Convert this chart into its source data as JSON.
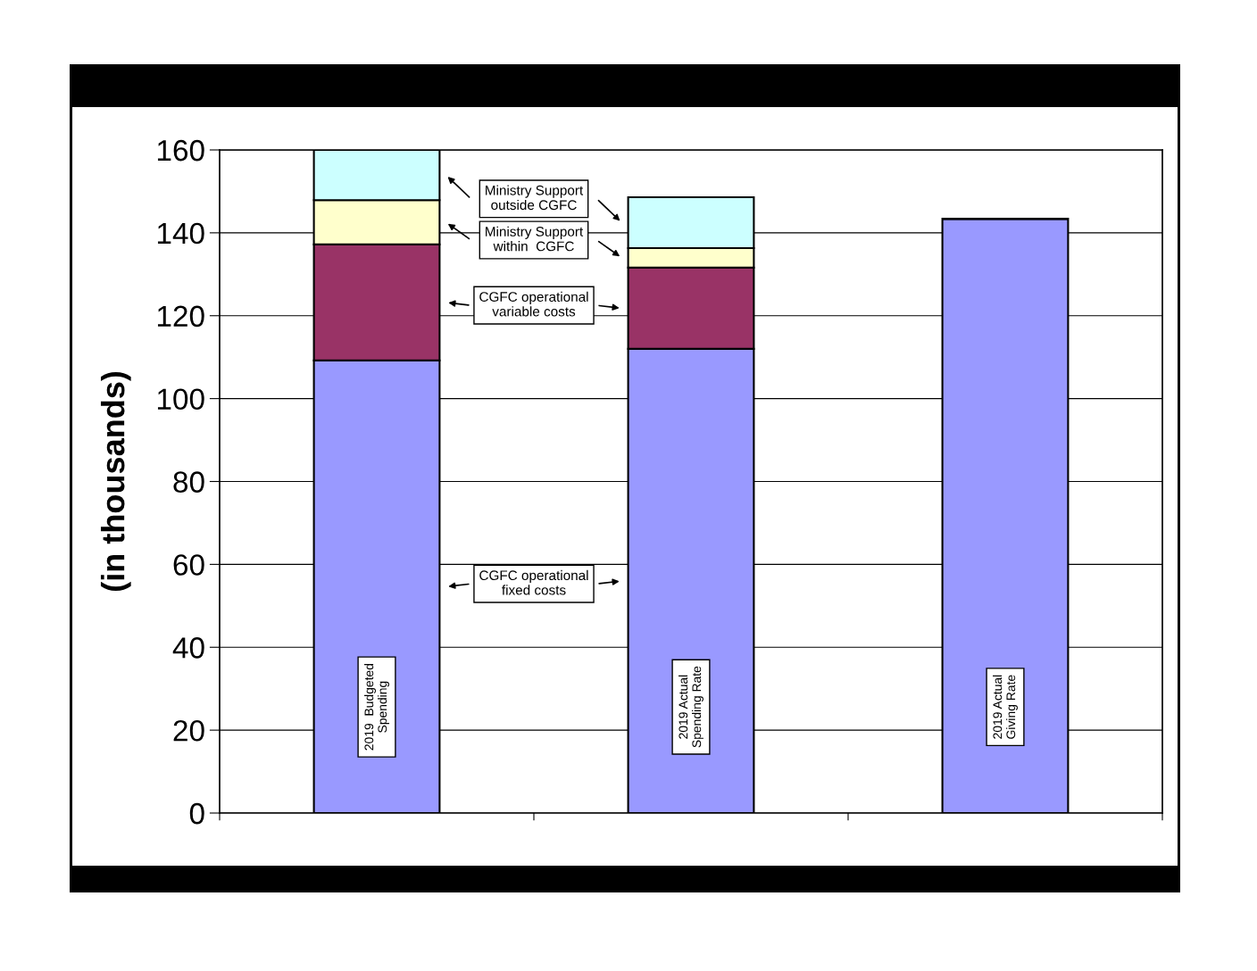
{
  "chart_data": {
    "type": "bar",
    "stacked": true,
    "ylabel": "(in thousands)",
    "categories": [
      "2019  Budgeted\nSpending",
      "2019 Actual\nSpending Rate",
      "2019 Actual\nGiving Rate"
    ],
    "series": [
      {
        "name": "CGFC operational\nfixed costs",
        "color": "#9999ff",
        "values": [
          109.2,
          112.0,
          143.4
        ]
      },
      {
        "name": "CGFC operational\nvariable costs",
        "color": "#993366",
        "values": [
          28.0,
          19.6,
          null
        ]
      },
      {
        "name": "Ministry Support\nwithin  CGFC",
        "color": "#ffffcc",
        "values": [
          10.7,
          4.7,
          null
        ]
      },
      {
        "name": "Ministry Support\noutside CGFC",
        "color": "#ccffff",
        "values": [
          12.1,
          12.3,
          null
        ]
      }
    ],
    "ylim": [
      0,
      160
    ],
    "yticks": [
      0,
      20,
      40,
      60,
      80,
      100,
      120,
      140,
      160
    ],
    "grid": "y",
    "legend": "top"
  }
}
